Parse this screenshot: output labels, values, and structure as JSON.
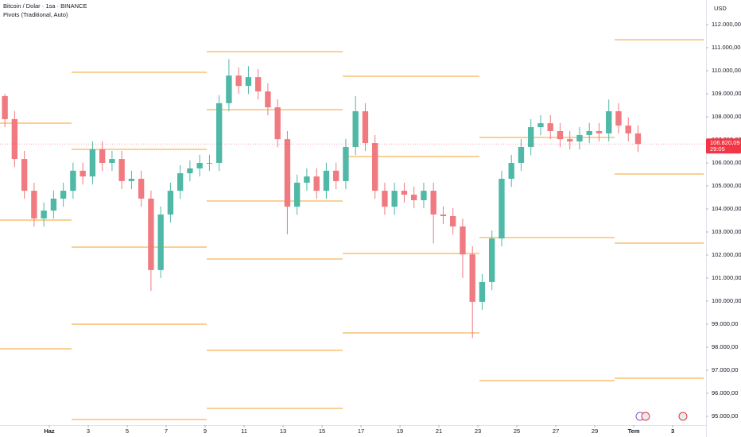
{
  "chart_data": {
    "type": "candlestick",
    "title": "Bitcoin / Dolar · 1sa · BINANCE",
    "indicator": "Pivots (Traditional, Auto)",
    "currency": "USD",
    "up_color": "#4fb8a6",
    "down_color": "#f07a80",
    "x": [
      -1.28,
      -0.78,
      -0.28,
      0.22,
      0.72,
      1.22,
      1.72,
      2.22,
      2.72,
      3.22,
      3.72,
      4.22,
      4.72,
      5.22,
      5.72,
      6.22,
      6.72,
      7.22,
      7.72,
      8.22,
      8.72,
      9.22,
      9.72,
      10.22,
      10.72,
      11.22,
      11.72,
      12.22,
      12.72,
      13.22,
      13.72,
      14.22,
      14.72,
      15.22,
      15.72,
      16.22,
      16.72,
      17.22,
      17.72,
      18.22,
      18.72,
      19.22,
      19.72,
      20.22,
      20.72,
      21.22,
      21.72,
      22.22,
      22.72,
      23.22,
      23.72,
      24.22,
      24.72,
      25.22,
      25.72,
      26.22,
      26.72,
      27.22,
      27.72,
      28.22,
      28.72,
      29.22,
      29.72,
      30.22,
      30.72,
      31.22
    ],
    "open": [
      108900,
      107900,
      106170,
      104790,
      103590,
      103930,
      104450,
      104790,
      105660,
      105410,
      106590,
      106000,
      106170,
      105210,
      105310,
      104450,
      101350,
      103760,
      104790,
      105550,
      105760,
      106000,
      106000,
      108590,
      109790,
      109340,
      109720,
      109100,
      108410,
      107030,
      104100,
      105140,
      105410,
      104790,
      105660,
      105210,
      106690,
      108240,
      106860,
      104790,
      104100,
      104790,
      104620,
      104380,
      104790,
      103760,
      103690,
      103240,
      102030,
      99970,
      100830,
      102720,
      105310,
      106000,
      106690,
      107550,
      107720,
      107380,
      107030,
      106930,
      107210,
      107380,
      107280,
      108240,
      107620,
      107280
    ],
    "high": [
      109000,
      108250,
      106520,
      105140,
      104280,
      104800,
      105140,
      106010,
      106010,
      106940,
      106940,
      106520,
      106520,
      105660,
      105660,
      104800,
      104110,
      105140,
      105900,
      106110,
      106350,
      106350,
      108940,
      110500,
      110140,
      110200,
      110070,
      109450,
      108760,
      107380,
      105490,
      105760,
      105760,
      106010,
      106010,
      107040,
      108900,
      108590,
      107210,
      105140,
      105140,
      105140,
      104970,
      105140,
      105140,
      104110,
      104040,
      103590,
      102380,
      101180,
      103070,
      105660,
      106350,
      107040,
      107900,
      108070,
      108070,
      107730,
      107380,
      107560,
      107730,
      107730,
      108750,
      108590,
      107970,
      107630
    ],
    "low": [
      107550,
      105820,
      104440,
      103240,
      103240,
      103580,
      104100,
      104440,
      105060,
      105060,
      105650,
      105650,
      104860,
      104860,
      104100,
      100450,
      101000,
      103410,
      104440,
      105200,
      105410,
      105650,
      105650,
      108240,
      108990,
      108990,
      108750,
      108060,
      106680,
      102900,
      103750,
      104790,
      104440,
      104440,
      104860,
      104860,
      106340,
      106510,
      104440,
      103750,
      103750,
      104270,
      104030,
      104030,
      102500,
      103340,
      102890,
      101000,
      98400,
      99620,
      100480,
      102370,
      104960,
      105650,
      106340,
      107200,
      107030,
      106680,
      106580,
      106580,
      106860,
      106930,
      106930,
      107270,
      106930,
      106470
    ],
    "close": [
      107900,
      106170,
      104790,
      103590,
      103930,
      104450,
      104790,
      105660,
      105410,
      106590,
      106000,
      106170,
      105210,
      105310,
      104450,
      101350,
      103760,
      104790,
      105550,
      105760,
      106000,
      106000,
      108590,
      109790,
      109340,
      109720,
      109100,
      108410,
      107030,
      104100,
      105140,
      105410,
      104790,
      105660,
      105210,
      106690,
      108240,
      106860,
      104790,
      104100,
      104790,
      104620,
      104380,
      104790,
      103760,
      103690,
      103240,
      102030,
      99970,
      100830,
      102720,
      105310,
      106000,
      106690,
      107550,
      107720,
      107380,
      107030,
      106930,
      107210,
      107380,
      107280,
      108240,
      107620,
      107280,
      106820.09
    ],
    "last_price": {
      "value": 106820.09,
      "label": "106.820,09"
    },
    "last_price_color": "#f23645",
    "countdown": "29:05",
    "pivot_color": "#f5a02a",
    "pivots": [
      {
        "start": -1.53,
        "end": 2.14,
        "levels": [
          107724,
          103517,
          97931
        ]
      },
      {
        "start": 2.14,
        "end": 9.08,
        "levels": [
          109931,
          106586,
          102345,
          99000,
          94862
        ]
      },
      {
        "start": 9.08,
        "end": 16.06,
        "levels": [
          110828,
          108310,
          104345,
          101828,
          97862,
          95345
        ]
      },
      {
        "start": 16.06,
        "end": 23.08,
        "levels": [
          109759,
          106276,
          102069,
          98621
        ]
      },
      {
        "start": 23.08,
        "end": 30.02,
        "levels": [
          107103,
          102759,
          96552
        ]
      },
      {
        "start": 30.02,
        "end": 34.6,
        "levels": [
          111345,
          105517,
          102517,
          96655
        ]
      }
    ],
    "xlim": [
      -1.53,
      34.71
    ],
    "xticks": [
      {
        "value": 1,
        "label": "Haz"
      },
      3,
      5,
      7,
      9,
      11,
      13,
      15,
      17,
      19,
      21,
      23,
      25,
      27,
      29,
      {
        "value": 31,
        "label": "Tem"
      },
      {
        "value": 33,
        "label": "3"
      }
    ],
    "ylim": [
      94621,
      113069
    ],
    "yticks": [
      {
        "value": 112000,
        "label": "112.000,00"
      },
      {
        "value": 111000,
        "label": "111.000,00"
      },
      {
        "value": 110000,
        "label": "110.000,00"
      },
      {
        "value": 109000,
        "label": "109.000,00"
      },
      {
        "value": 108000,
        "label": "108.000,00"
      },
      {
        "value": 107000,
        "label": "107.000,00"
      },
      {
        "value": 106000,
        "label": "106.000,00"
      },
      {
        "value": 105000,
        "label": "105.000,00"
      },
      {
        "value": 104000,
        "label": "104.000,00"
      },
      {
        "value": 103000,
        "label": "103.000,00"
      },
      {
        "value": 102000,
        "label": "102.000,00"
      },
      {
        "value": 101000,
        "label": "101.000,00"
      },
      {
        "value": 100000,
        "label": "100.000,00"
      },
      {
        "value": 99000,
        "label": "99.000,00"
      },
      {
        "value": 98000,
        "label": "98.000,00"
      },
      {
        "value": 97000,
        "label": "97.000,00"
      },
      {
        "value": 96000,
        "label": "96.000,00"
      },
      {
        "value": 95000,
        "label": "95.000,00"
      }
    ]
  }
}
